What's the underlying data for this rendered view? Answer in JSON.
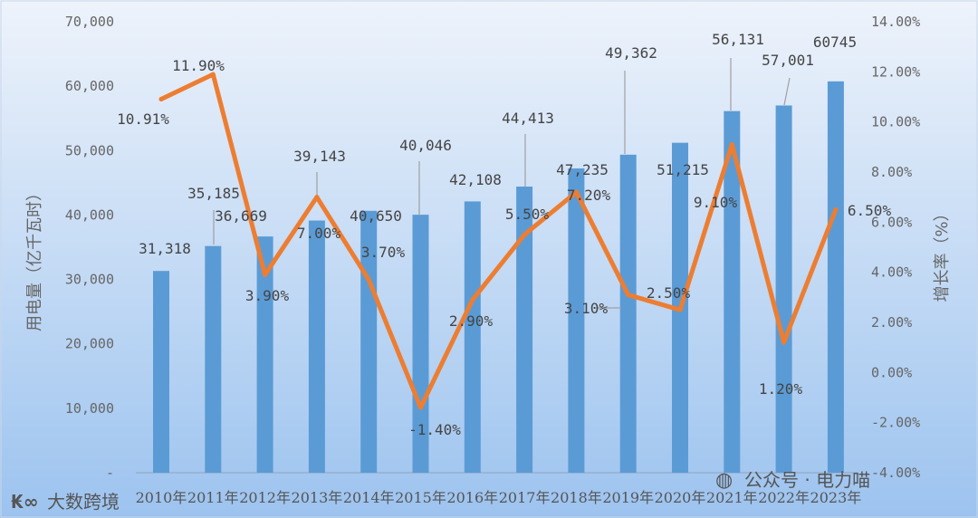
{
  "chart_data": {
    "type": "bar",
    "categories": [
      "2010年",
      "2011年",
      "2012年",
      "2013年",
      "2014年",
      "2015年",
      "2016年",
      "2017年",
      "2018年",
      "2019年",
      "2020年",
      "2021年",
      "2022年",
      "2023年"
    ],
    "series": [
      {
        "values": [
          31318,
          35185,
          36669,
          39143,
          40650,
          40046,
          42108,
          44413,
          47235,
          49362,
          51215,
          56131,
          57001,
          60745
        ],
        "labels": [
          "31,318",
          "35,185",
          "36,669",
          "39,143",
          "40,650",
          "40,046",
          "42,108",
          "44,413",
          "47,235",
          "49,362",
          "51,215",
          "56,131",
          "57,001",
          "60745"
        ],
        "type": "bar",
        "axis": "left",
        "color": "#5B9BD5"
      },
      {
        "values": [
          10.91,
          11.9,
          3.9,
          7.0,
          3.7,
          -1.4,
          2.9,
          5.5,
          7.2,
          3.1,
          2.5,
          9.1,
          1.2,
          6.5
        ],
        "labels": [
          "10.91%",
          "11.90%",
          "3.90%",
          "7.00%",
          "3.70%",
          "-1.40%",
          "2.90%",
          "5.50%",
          "7.20%",
          "3.10%",
          "2.50%",
          "9.10%",
          "1.20%",
          "6.50%"
        ],
        "type": "line",
        "axis": "right",
        "color": "#ED7D31"
      }
    ],
    "ylabel": "用电量（亿千瓦时）",
    "y2label": "增长率（%）",
    "ylim": [
      0,
      70000
    ],
    "y2lim": [
      -4,
      14
    ],
    "yticks": [
      "-",
      "10,000",
      "20,000",
      "30,000",
      "40,000",
      "50,000",
      "60,000",
      "70,000"
    ],
    "y2ticks": [
      "-4.00%",
      "-2.00%",
      "0.00%",
      "2.00%",
      "4.00%",
      "6.00%",
      "8.00%",
      "10.00%",
      "12.00%",
      "14.00%"
    ],
    "grid": false,
    "legend": "none"
  },
  "watermarks": {
    "left": "大数跨境",
    "right": "公众号 · 电力喵"
  }
}
